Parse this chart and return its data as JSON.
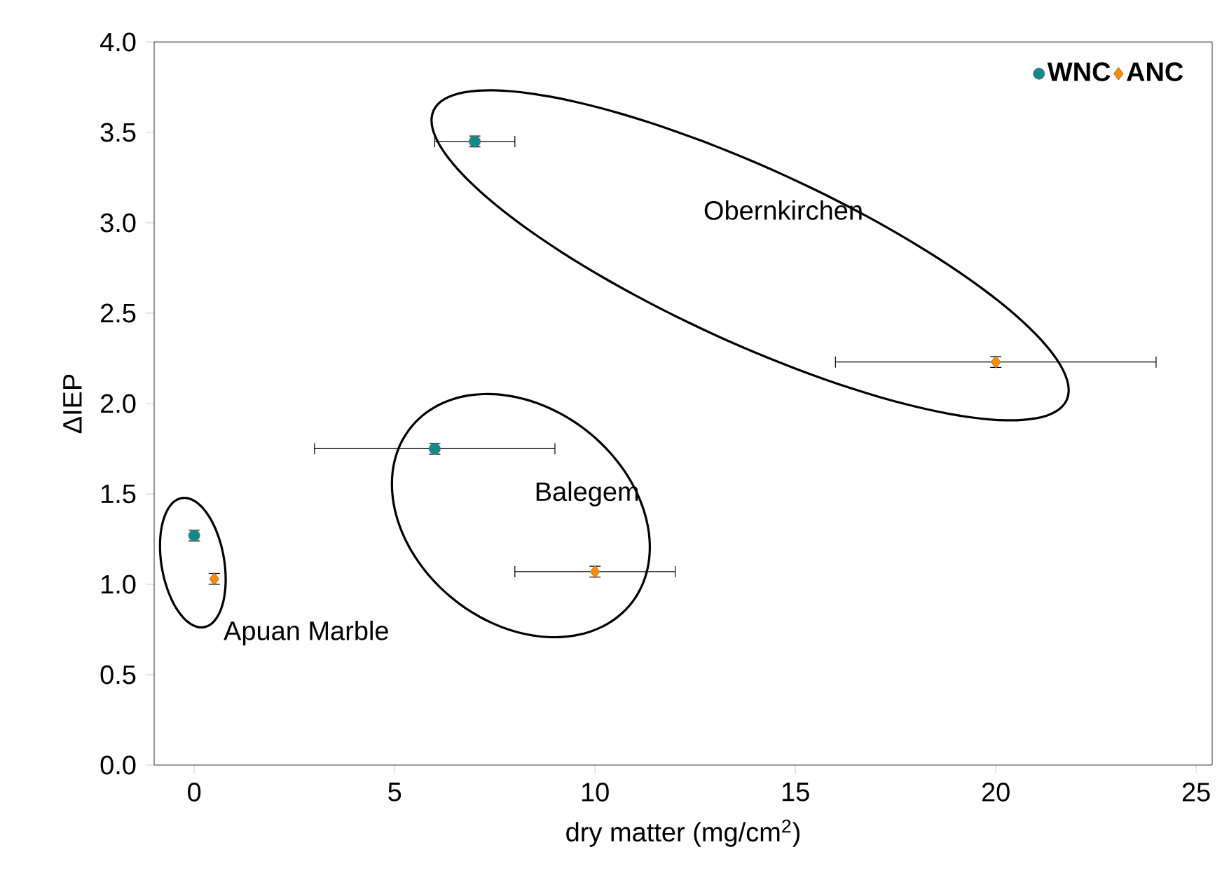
{
  "chart_data": {
    "type": "scatter",
    "xlabel": "dry matter (mg/cm$^{2}$)",
    "ylabel": "ΔIEP",
    "xlim": [
      -1,
      25.4
    ],
    "ylim": [
      0,
      4
    ],
    "xticks": [
      0,
      5,
      10,
      15,
      20,
      25
    ],
    "yticks": [
      {
        "value": 0,
        "label": "0.0"
      },
      {
        "value": 0.5,
        "label": "0.5"
      },
      {
        "value": 1,
        "label": "1.0"
      },
      {
        "value": 1.5,
        "label": "1.5"
      },
      {
        "value": 2,
        "label": "2.0"
      },
      {
        "value": 2.5,
        "label": "2.5"
      },
      {
        "value": 3,
        "label": "3.0"
      },
      {
        "value": 3.5,
        "label": "3.5"
      },
      {
        "value": 4,
        "label": "4.0"
      }
    ],
    "legend": "top right",
    "grid": false,
    "series": [
      {
        "name": "WNC",
        "color": "#138a8a",
        "marker": "circle",
        "x": [
          0,
          6,
          7
        ],
        "values": [
          1.27,
          1.75,
          3.45
        ],
        "xerrors": [
          null,
          3,
          1
        ],
        "errors": [
          0.03,
          0.03,
          0.03
        ]
      },
      {
        "name": "ANC",
        "color": "#ff8c00",
        "marker": "diamond",
        "x": [
          0.5,
          10,
          20
        ],
        "values": [
          1.03,
          1.07,
          2.23
        ],
        "xerrors": [
          null,
          2,
          4
        ],
        "errors": [
          0.03,
          0.03,
          0.03
        ]
      }
    ],
    "annotations": [
      "Obernkirchen",
      "Balegem",
      "Apuan Marble"
    ]
  }
}
